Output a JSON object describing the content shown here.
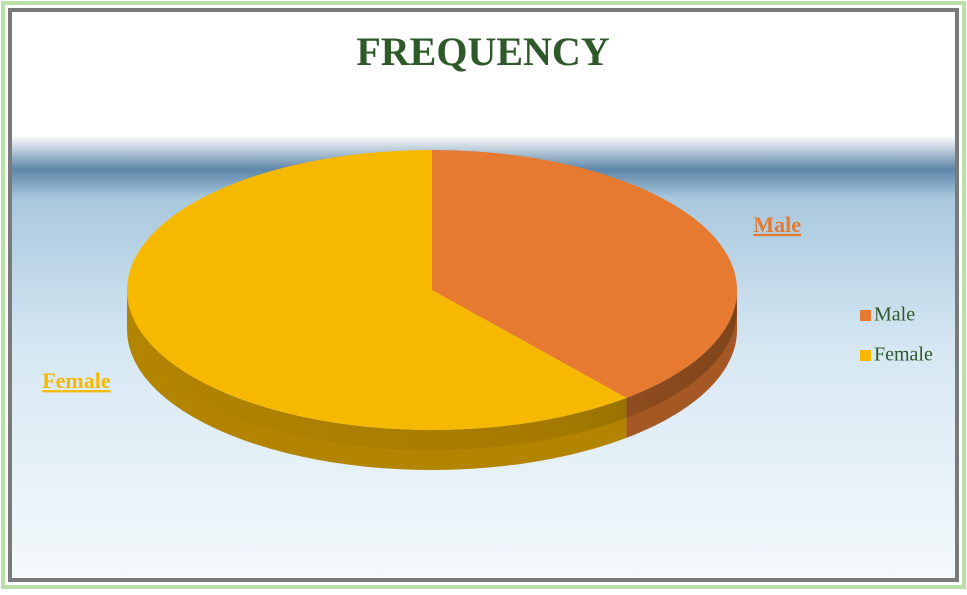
{
  "chart_data": {
    "type": "pie",
    "title": "FREQUENCY",
    "categories": [
      "Male",
      "Female"
    ],
    "values": [
      39,
      61
    ],
    "colors": [
      "#e57a30",
      "#f7b800"
    ],
    "legend": "right"
  }
}
